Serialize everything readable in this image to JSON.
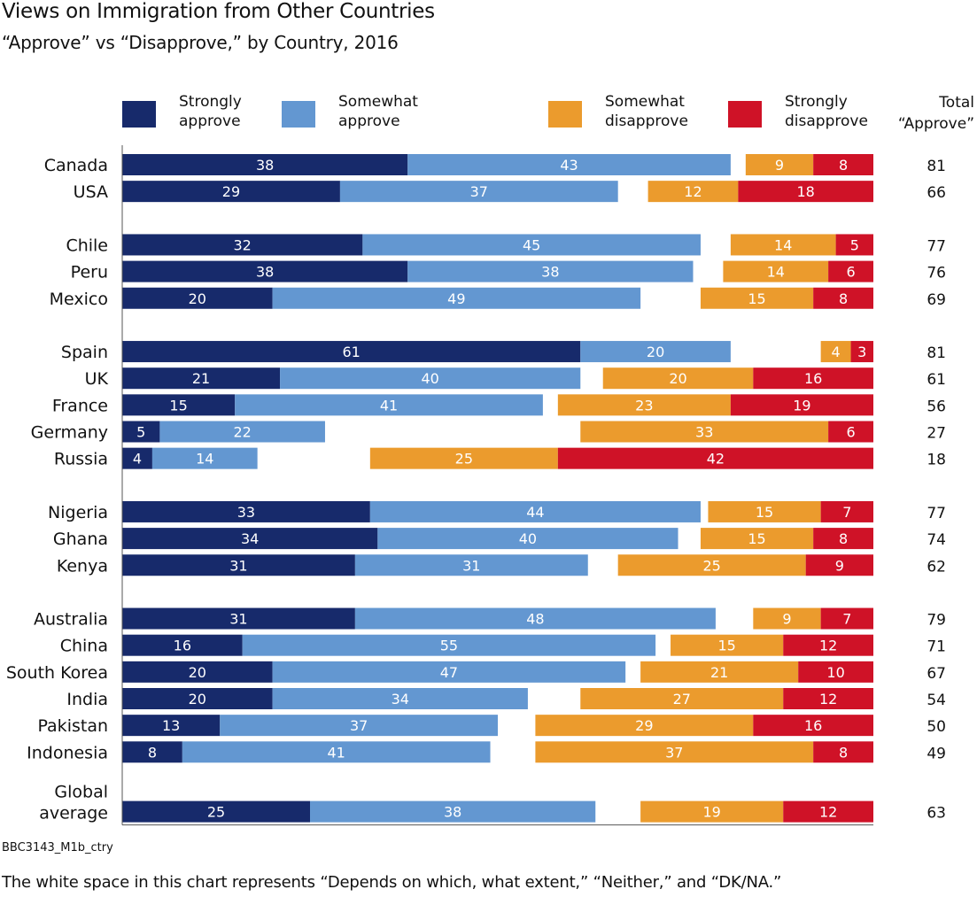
{
  "chart_data": {
    "type": "bar",
    "subtype": "diverging-stacked-horizontal",
    "title": "Views on Immigration from Other Countries",
    "subtitle": "“Approve” vs “Disapprove,” by Country, 2016",
    "series": [
      {
        "key": "strongly_approve",
        "name": "Strongly approve",
        "name_lines": [
          "Strongly",
          "approve"
        ],
        "color": "#172a6b"
      },
      {
        "key": "somewhat_approve",
        "name": "Somewhat approve",
        "name_lines": [
          "Somewhat",
          "approve"
        ],
        "color": "#6397d1"
      },
      {
        "key": "somewhat_disapprove",
        "name": "Somewhat disapprove",
        "name_lines": [
          "Somewhat",
          "disapprove"
        ],
        "color": "#eb9b2d"
      },
      {
        "key": "strongly_disapprove",
        "name": "Strongly disapprove",
        "name_lines": [
          "Strongly",
          "disapprove"
        ],
        "color": "#cf1227"
      }
    ],
    "total_header": "Total “Approve”",
    "total_header_lines": [
      "Total",
      "“Approve”"
    ],
    "groups": [
      {
        "rows": [
          {
            "country": "Canada",
            "strongly_approve": 38,
            "somewhat_approve": 43,
            "somewhat_disapprove": 9,
            "strongly_disapprove": 8,
            "total_approve": 81
          },
          {
            "country": "USA",
            "strongly_approve": 29,
            "somewhat_approve": 37,
            "somewhat_disapprove": 12,
            "strongly_disapprove": 18,
            "total_approve": 66
          }
        ]
      },
      {
        "rows": [
          {
            "country": "Chile",
            "strongly_approve": 32,
            "somewhat_approve": 45,
            "somewhat_disapprove": 14,
            "strongly_disapprove": 5,
            "total_approve": 77
          },
          {
            "country": "Peru",
            "strongly_approve": 38,
            "somewhat_approve": 38,
            "somewhat_disapprove": 14,
            "strongly_disapprove": 6,
            "total_approve": 76
          },
          {
            "country": "Mexico",
            "strongly_approve": 20,
            "somewhat_approve": 49,
            "somewhat_disapprove": 15,
            "strongly_disapprove": 8,
            "total_approve": 69
          }
        ]
      },
      {
        "rows": [
          {
            "country": "Spain",
            "strongly_approve": 61,
            "somewhat_approve": 20,
            "somewhat_disapprove": 4,
            "strongly_disapprove": 3,
            "total_approve": 81
          },
          {
            "country": "UK",
            "strongly_approve": 21,
            "somewhat_approve": 40,
            "somewhat_disapprove": 20,
            "strongly_disapprove": 16,
            "total_approve": 61
          },
          {
            "country": "France",
            "strongly_approve": 15,
            "somewhat_approve": 41,
            "somewhat_disapprove": 23,
            "strongly_disapprove": 19,
            "total_approve": 56
          },
          {
            "country": "Germany",
            "strongly_approve": 5,
            "somewhat_approve": 22,
            "somewhat_disapprove": 33,
            "strongly_disapprove": 6,
            "total_approve": 27
          },
          {
            "country": "Russia",
            "strongly_approve": 4,
            "somewhat_approve": 14,
            "somewhat_disapprove": 25,
            "strongly_disapprove": 42,
            "total_approve": 18
          }
        ]
      },
      {
        "rows": [
          {
            "country": "Nigeria",
            "strongly_approve": 33,
            "somewhat_approve": 44,
            "somewhat_disapprove": 15,
            "strongly_disapprove": 7,
            "total_approve": 77
          },
          {
            "country": "Ghana",
            "strongly_approve": 34,
            "somewhat_approve": 40,
            "somewhat_disapprove": 15,
            "strongly_disapprove": 8,
            "total_approve": 74
          },
          {
            "country": "Kenya",
            "strongly_approve": 31,
            "somewhat_approve": 31,
            "somewhat_disapprove": 25,
            "strongly_disapprove": 9,
            "total_approve": 62
          }
        ]
      },
      {
        "rows": [
          {
            "country": "Australia",
            "strongly_approve": 31,
            "somewhat_approve": 48,
            "somewhat_disapprove": 9,
            "strongly_disapprove": 7,
            "total_approve": 79
          },
          {
            "country": "China",
            "strongly_approve": 16,
            "somewhat_approve": 55,
            "somewhat_disapprove": 15,
            "strongly_disapprove": 12,
            "total_approve": 71
          },
          {
            "country": "South Korea",
            "strongly_approve": 20,
            "somewhat_approve": 47,
            "somewhat_disapprove": 21,
            "strongly_disapprove": 10,
            "total_approve": 67
          },
          {
            "country": "India",
            "strongly_approve": 20,
            "somewhat_approve": 34,
            "somewhat_disapprove": 27,
            "strongly_disapprove": 12,
            "total_approve": 54
          },
          {
            "country": "Pakistan",
            "strongly_approve": 13,
            "somewhat_approve": 37,
            "somewhat_disapprove": 29,
            "strongly_disapprove": 16,
            "total_approve": 50
          },
          {
            "country": "Indonesia",
            "strongly_approve": 8,
            "somewhat_approve": 41,
            "somewhat_disapprove": 37,
            "strongly_disapprove": 8,
            "total_approve": 49
          }
        ]
      },
      {
        "rows": [
          {
            "country": "Global average",
            "country_lines": [
              "Global",
              "average"
            ],
            "strongly_approve": 25,
            "somewhat_approve": 38,
            "somewhat_disapprove": 19,
            "strongly_disapprove": 12,
            "total_approve": 63
          }
        ]
      }
    ],
    "xlim": [
      0,
      100
    ],
    "gridlines": false
  },
  "source_code": "BBC3143_M1b_ctry",
  "footnote": "The white space in this chart represents “Depends on which, what extent,” “Neither,” and “DK/NA.”"
}
